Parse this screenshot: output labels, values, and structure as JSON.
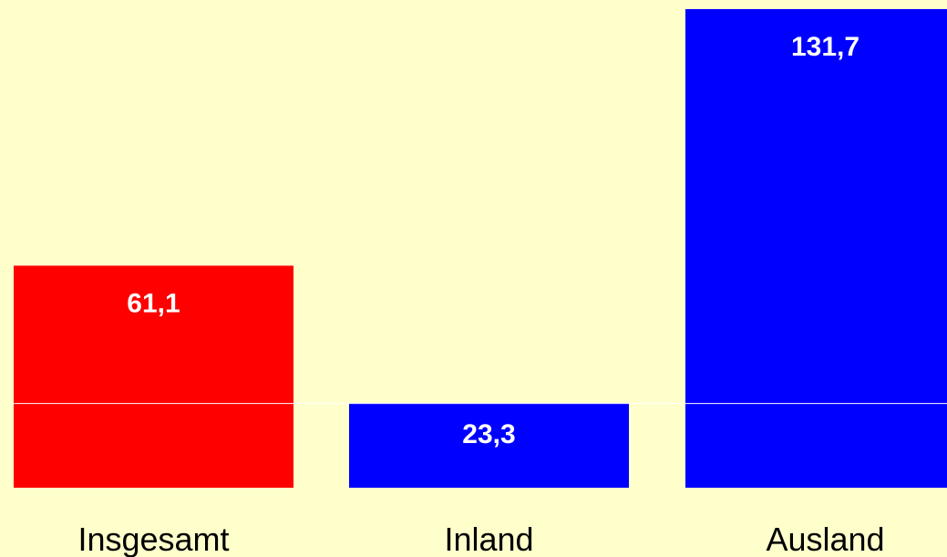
{
  "chart_data": {
    "type": "bar",
    "title": "",
    "xlabel": "",
    "ylabel": "",
    "categories": [
      "Insgesamt",
      "Inland",
      "Ausland"
    ],
    "values": [
      61.1,
      23.3,
      131.7
    ],
    "value_labels": [
      "61,1",
      "23,3",
      "131,7"
    ],
    "ylim": [
      0,
      131.7
    ],
    "reference_line": 23.3,
    "grid": false,
    "legend": "none",
    "colors": [
      "#FF0000",
      "#0000FF",
      "#0000FF"
    ],
    "reference_line_color": "#FFFFFF",
    "background_color": "#FFFFCC"
  }
}
